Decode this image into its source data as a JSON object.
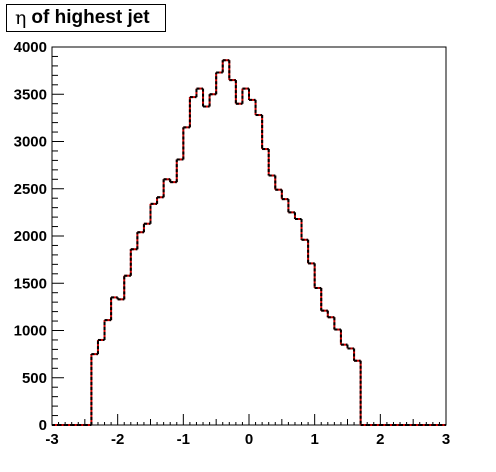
{
  "title": {
    "symbol": "η",
    "text": "of highest jet"
  },
  "chart_data": {
    "type": "histogram",
    "title": "η of highest jet",
    "xlabel": "",
    "ylabel": "",
    "xlim": [
      -3,
      3
    ],
    "ylim": [
      0,
      4000
    ],
    "bin_width": 0.1,
    "bin_edges_start": -3.0,
    "x_ticks": [
      -3,
      -2,
      -1,
      0,
      1,
      2,
      3
    ],
    "x_tick_labels": [
      "-3",
      "-2",
      "-1",
      "0",
      "1",
      "2",
      "3"
    ],
    "y_ticks": [
      0,
      500,
      1000,
      1500,
      2000,
      2500,
      3000,
      3500,
      4000
    ],
    "y_tick_labels": [
      "0",
      "500",
      "1000",
      "1500",
      "2000",
      "2500",
      "3000",
      "3500",
      "4000"
    ],
    "grid": false,
    "series": [
      {
        "line_color": "#cc0000",
        "values": [
          0,
          0,
          0,
          0,
          0,
          0,
          750,
          900,
          1110,
          1350,
          1330,
          1580,
          1860,
          2040,
          2130,
          2340,
          2410,
          2600,
          2570,
          2810,
          3150,
          3470,
          3560,
          3370,
          3500,
          3730,
          3860,
          3650,
          3400,
          3560,
          3440,
          3280,
          2920,
          2640,
          2490,
          2390,
          2250,
          2180,
          1960,
          1710,
          1450,
          1210,
          1140,
          1010,
          850,
          810,
          680,
          0,
          0,
          0,
          0,
          0,
          0,
          0,
          0,
          0,
          0,
          0,
          0,
          0
        ]
      },
      {
        "line_color": "#000000",
        "dashed": true,
        "values": [
          0,
          0,
          0,
          0,
          0,
          0,
          750,
          900,
          1110,
          1350,
          1330,
          1580,
          1860,
          2040,
          2130,
          2340,
          2410,
          2600,
          2570,
          2810,
          3150,
          3470,
          3560,
          3370,
          3500,
          3730,
          3860,
          3650,
          3400,
          3560,
          3440,
          3280,
          2920,
          2640,
          2490,
          2390,
          2250,
          2180,
          1960,
          1710,
          1450,
          1210,
          1140,
          1010,
          850,
          810,
          680,
          0,
          0,
          0,
          0,
          0,
          0,
          0,
          0,
          0,
          0,
          0,
          0,
          0
        ]
      }
    ]
  }
}
